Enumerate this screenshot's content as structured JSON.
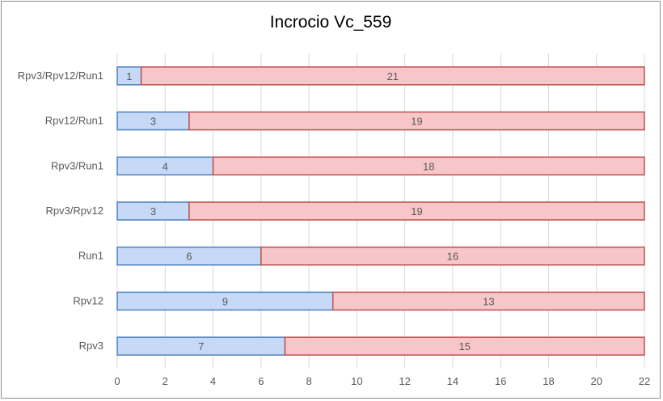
{
  "chart_data": {
    "type": "bar",
    "orientation": "horizontal",
    "stacked": true,
    "title": "Incrocio Vc_559",
    "categories": [
      "Rpv3/Rpv12/Run1",
      "Rpv12/Run1",
      "Rpv3/Run1",
      "Rpv3/Rpv12",
      "Run1",
      "Rpv12",
      "Rpv3"
    ],
    "series": [
      {
        "values": [
          1,
          3,
          4,
          3,
          6,
          9,
          7
        ],
        "color": "#c6d9f7",
        "edge": "#4f81bd"
      },
      {
        "values": [
          21,
          19,
          18,
          19,
          16,
          13,
          15
        ],
        "color": "#f7c6c9",
        "edge": "#c0504d"
      }
    ],
    "xlim": [
      0,
      22
    ],
    "xticks": [
      0,
      2,
      4,
      6,
      8,
      10,
      12,
      14,
      16,
      18,
      20,
      22
    ],
    "grid": true,
    "legend": "none"
  }
}
